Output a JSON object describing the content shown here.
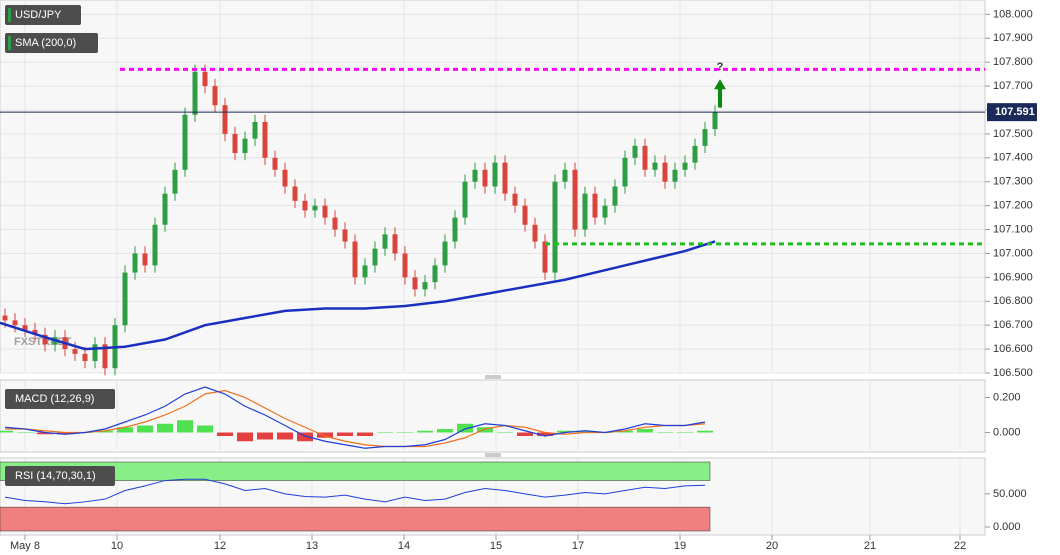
{
  "chart_data": [
    {
      "type": "candlestick",
      "title": "USD/JPY",
      "watermark": "FXSTREET",
      "x": [
        0,
        1,
        2,
        3,
        4,
        5,
        6,
        7,
        8,
        9,
        10,
        11,
        12,
        13,
        14,
        15,
        16,
        17,
        18,
        19,
        20,
        21,
        22,
        23,
        24,
        25,
        26,
        27,
        28,
        29,
        30,
        31,
        32,
        33,
        34,
        35,
        36,
        37,
        38,
        39,
        40,
        41,
        42,
        43,
        44,
        45,
        46,
        47,
        48,
        49,
        50,
        51,
        52,
        53,
        54,
        55,
        56,
        57,
        58,
        59,
        60,
        61,
        62,
        63,
        64,
        65,
        66,
        67,
        68,
        69,
        70,
        71
      ],
      "open": [
        106.74,
        106.72,
        106.7,
        106.68,
        106.66,
        106.62,
        106.65,
        106.6,
        106.58,
        106.55,
        106.62,
        106.52,
        106.7,
        106.92,
        107.0,
        106.95,
        107.12,
        107.25,
        107.35,
        107.58,
        107.76,
        107.7,
        107.62,
        107.5,
        107.42,
        107.48,
        107.55,
        107.4,
        107.35,
        107.28,
        107.22,
        107.18,
        107.2,
        107.15,
        107.1,
        107.05,
        106.9,
        106.95,
        107.02,
        107.08,
        107.0,
        106.9,
        106.85,
        106.88,
        106.95,
        107.05,
        107.15,
        107.3,
        107.35,
        107.28,
        107.38,
        107.25,
        107.2,
        107.12,
        107.05,
        106.92,
        107.3,
        107.35,
        107.1,
        107.25,
        107.15,
        107.2,
        107.28,
        107.4,
        107.45,
        107.35,
        107.38,
        107.3,
        107.35,
        107.38,
        107.45,
        107.52
      ],
      "high": [
        106.77,
        106.75,
        106.73,
        106.71,
        106.69,
        106.68,
        106.68,
        106.63,
        106.61,
        106.65,
        106.65,
        106.73,
        106.95,
        107.03,
        107.03,
        107.15,
        107.28,
        107.38,
        107.61,
        107.79,
        107.79,
        107.73,
        107.65,
        107.53,
        107.51,
        107.58,
        107.58,
        107.43,
        107.38,
        107.31,
        107.25,
        107.23,
        107.23,
        107.18,
        107.13,
        107.08,
        106.98,
        107.05,
        107.11,
        107.11,
        107.03,
        106.93,
        106.91,
        106.98,
        107.08,
        107.18,
        107.33,
        107.38,
        107.38,
        107.41,
        107.41,
        107.28,
        107.23,
        107.15,
        107.08,
        107.33,
        107.38,
        107.38,
        107.28,
        107.28,
        107.23,
        107.31,
        107.43,
        107.48,
        107.48,
        107.41,
        107.41,
        107.38,
        107.41,
        107.48,
        107.55,
        107.62
      ],
      "low": [
        106.69,
        106.67,
        106.65,
        106.63,
        106.59,
        106.59,
        106.57,
        106.55,
        106.52,
        106.52,
        106.49,
        106.49,
        106.67,
        106.89,
        106.92,
        106.92,
        107.09,
        107.22,
        107.32,
        107.55,
        107.67,
        107.59,
        107.47,
        107.39,
        107.39,
        107.45,
        107.37,
        107.32,
        107.25,
        107.19,
        107.15,
        107.15,
        107.12,
        107.07,
        107.02,
        106.87,
        106.87,
        106.92,
        106.99,
        106.97,
        106.87,
        106.82,
        106.82,
        106.85,
        106.92,
        107.02,
        107.12,
        107.27,
        107.25,
        107.25,
        107.22,
        107.17,
        107.09,
        107.02,
        106.89,
        106.89,
        107.27,
        107.07,
        107.07,
        107.12,
        107.12,
        107.17,
        107.25,
        107.37,
        107.32,
        107.32,
        107.27,
        107.27,
        107.32,
        107.35,
        107.42,
        107.49
      ],
      "close": [
        106.72,
        106.7,
        106.68,
        106.66,
        106.62,
        106.65,
        106.6,
        106.58,
        106.55,
        106.62,
        106.52,
        106.7,
        106.92,
        107.0,
        106.95,
        107.12,
        107.25,
        107.35,
        107.58,
        107.76,
        107.7,
        107.62,
        107.5,
        107.42,
        107.48,
        107.55,
        107.4,
        107.35,
        107.28,
        107.22,
        107.18,
        107.2,
        107.15,
        107.1,
        107.05,
        106.9,
        106.95,
        107.02,
        107.08,
        107.0,
        106.9,
        106.85,
        106.88,
        106.95,
        107.05,
        107.15,
        107.3,
        107.35,
        107.28,
        107.38,
        107.25,
        107.2,
        107.12,
        107.05,
        106.92,
        107.3,
        107.35,
        107.1,
        107.25,
        107.15,
        107.2,
        107.28,
        107.4,
        107.45,
        107.35,
        107.38,
        107.3,
        107.35,
        107.38,
        107.45,
        107.52,
        107.59
      ],
      "up_color": "#2e9e44",
      "down_color": "#d9453c",
      "sma": {
        "name": "SMA (200,0)",
        "color": "#1a2fbf",
        "x": [
          -0.5,
          4,
          8,
          12,
          16,
          20,
          24,
          28,
          32,
          36,
          40,
          44,
          48,
          52,
          56,
          60,
          64,
          68,
          71
        ],
        "values": [
          106.71,
          106.65,
          106.6,
          106.61,
          106.64,
          106.7,
          106.73,
          106.76,
          106.77,
          106.77,
          106.78,
          106.8,
          106.83,
          106.86,
          106.89,
          106.93,
          106.97,
          107.01,
          107.05
        ]
      },
      "levels": [
        {
          "value": 107.77,
          "from": 11.5,
          "to": 98,
          "color": "#ff00ff"
        },
        {
          "value": 107.04,
          "from": 54,
          "to": 98,
          "color": "#1fbf1f"
        }
      ],
      "last_price": 107.591,
      "last_price_color": "#1c2a5a",
      "annotation": {
        "text": "?",
        "x": 71.5,
        "from": 107.61,
        "to": 107.72,
        "color": "#0a8a0a"
      },
      "xlim": [
        -0.5,
        98
      ],
      "ylim": [
        106.5,
        108.06
      ],
      "xticks": [
        {
          "value": 2,
          "label": "May 8"
        },
        {
          "value": 11.2,
          "label": "10"
        },
        {
          "value": 21.5,
          "label": "12"
        },
        {
          "value": 30.7,
          "label": "13"
        },
        {
          "value": 39.9,
          "label": "14"
        },
        {
          "value": 49.1,
          "label": "15"
        },
        {
          "value": 57.3,
          "label": "17"
        },
        {
          "value": 67.5,
          "label": "19"
        },
        {
          "value": 76.7,
          "label": "20"
        },
        {
          "value": 86.5,
          "label": "21"
        },
        {
          "value": 95.5,
          "label": "22"
        }
      ],
      "yticks": [
        {
          "value": 106.5,
          "label": "106.500"
        },
        {
          "value": 106.6,
          "label": "106.600"
        },
        {
          "value": 106.7,
          "label": "106.700"
        },
        {
          "value": 106.8,
          "label": "106.800"
        },
        {
          "value": 106.9,
          "label": "106.900"
        },
        {
          "value": 107,
          "label": "107.000"
        },
        {
          "value": 107.1,
          "label": "107.100"
        },
        {
          "value": 107.2,
          "label": "107.200"
        },
        {
          "value": 107.3,
          "label": "107.300"
        },
        {
          "value": 107.4,
          "label": "107.400"
        },
        {
          "value": 107.5,
          "label": "107.500"
        },
        {
          "value": 107.6,
          "label": "107.600"
        },
        {
          "value": 107.7,
          "label": "107.700"
        },
        {
          "value": 107.8,
          "label": "107.800"
        },
        {
          "value": 107.9,
          "label": "107.900"
        },
        {
          "value": 108,
          "label": "108.000"
        }
      ],
      "grid": true
    },
    {
      "type": "macd",
      "title": "MACD (12,26,9)",
      "x": [
        0,
        2,
        4,
        6,
        8,
        10,
        12,
        14,
        16,
        18,
        20,
        22,
        24,
        26,
        28,
        30,
        32,
        34,
        36,
        38,
        40,
        42,
        44,
        46,
        48,
        50,
        52,
        54,
        56,
        58,
        60,
        62,
        64,
        66,
        68,
        70
      ],
      "macd": {
        "color": "#1f3fd6",
        "values": [
          0.03,
          0.02,
          0.0,
          -0.01,
          0.0,
          0.02,
          0.06,
          0.1,
          0.15,
          0.22,
          0.26,
          0.22,
          0.15,
          0.1,
          0.04,
          -0.02,
          -0.05,
          -0.07,
          -0.09,
          -0.08,
          -0.08,
          -0.07,
          -0.04,
          0.02,
          0.05,
          0.04,
          0.01,
          -0.02,
          0.0,
          0.01,
          0.0,
          0.02,
          0.05,
          0.04,
          0.04,
          0.06
        ]
      },
      "signal": {
        "color": "#f07020",
        "values": [
          0.02,
          0.02,
          0.01,
          0.0,
          0.0,
          0.01,
          0.03,
          0.06,
          0.1,
          0.15,
          0.22,
          0.24,
          0.2,
          0.14,
          0.08,
          0.03,
          -0.02,
          -0.05,
          -0.07,
          -0.08,
          -0.08,
          -0.08,
          -0.06,
          -0.03,
          0.02,
          0.04,
          0.03,
          0.0,
          -0.01,
          0.0,
          0.0,
          0.01,
          0.03,
          0.04,
          0.04,
          0.05
        ]
      },
      "histogram": {
        "up_color": "#33dd33",
        "down_color": "#e02020",
        "values": [
          0.01,
          0.0,
          -0.01,
          -0.01,
          0.0,
          0.01,
          0.03,
          0.04,
          0.05,
          0.07,
          0.04,
          -0.02,
          -0.05,
          -0.04,
          -0.04,
          -0.05,
          -0.03,
          -0.02,
          -0.02,
          0.0,
          0.0,
          0.01,
          0.02,
          0.05,
          0.03,
          0.0,
          -0.02,
          -0.02,
          0.01,
          0.01,
          0.0,
          0.01,
          0.02,
          0.0,
          0.0,
          0.01
        ]
      },
      "ylim": [
        -0.1,
        0.3
      ],
      "yticks": [
        {
          "value": 0,
          "label": "0.000"
        },
        {
          "value": 0.2,
          "label": "0.200"
        }
      ]
    },
    {
      "type": "rsi",
      "title": "RSI (14,70,30,1)",
      "x": [
        0,
        2,
        4,
        6,
        8,
        10,
        12,
        14,
        16,
        18,
        20,
        22,
        24,
        26,
        28,
        30,
        32,
        34,
        36,
        38,
        40,
        42,
        44,
        46,
        48,
        50,
        52,
        54,
        56,
        58,
        60,
        62,
        64,
        66,
        68,
        70
      ],
      "values": [
        45,
        40,
        38,
        35,
        38,
        42,
        55,
        62,
        70,
        72,
        72,
        65,
        55,
        58,
        50,
        46,
        45,
        48,
        42,
        38,
        45,
        40,
        42,
        52,
        58,
        55,
        50,
        45,
        48,
        52,
        50,
        55,
        60,
        58,
        62,
        63
      ],
      "color": "#1f3fd6",
      "overbought": 70,
      "oversold": 30,
      "overbought_color": "#88ee88",
      "oversold_color": "#f08080",
      "ylim": [
        -12,
        104
      ],
      "yticks": [
        {
          "value": 0,
          "label": "0.000"
        },
        {
          "value": 50,
          "label": "50.000"
        }
      ]
    }
  ]
}
